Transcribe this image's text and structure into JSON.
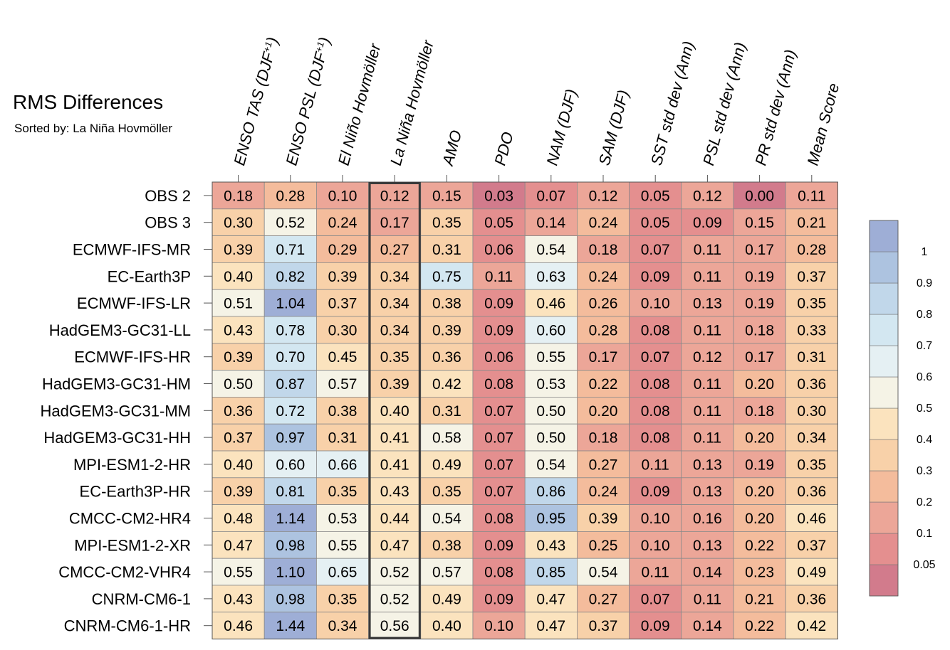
{
  "chart_data": {
    "type": "heatmap",
    "title": "RMS Differences",
    "subtitle": "Sorted by: La Niña Hovmöller",
    "highlight_column": "La Niña Hovmöller",
    "columns": [
      "ENSO TAS (DJF+1)",
      "ENSO PSL (DJF+1)",
      "El Niño Hovmöller",
      "La Niña Hovmöller",
      "AMO",
      "PDO",
      "NAM (DJF)",
      "SAM (DJF)",
      "SST std dev (Ann)",
      "PSL std dev (Ann)",
      "PR std dev (Ann)",
      "Mean Score"
    ],
    "rows": [
      "OBS 2",
      "OBS 3",
      "ECMWF-IFS-MR",
      "EC-Earth3P",
      "ECMWF-IFS-LR",
      "HadGEM3-GC31-LL",
      "ECMWF-IFS-HR",
      "HadGEM3-GC31-HM",
      "HadGEM3-GC31-MM",
      "HadGEM3-GC31-HH",
      "MPI-ESM1-2-HR",
      "EC-Earth3P-HR",
      "CMCC-CM2-HR4",
      "MPI-ESM1-2-XR",
      "CMCC-CM2-VHR4",
      "CNRM-CM6-1",
      "CNRM-CM6-1-HR"
    ],
    "values": [
      [
        "0.18",
        "0.28",
        "0.10",
        "0.12",
        "0.15",
        "0.03",
        "0.07",
        "0.12",
        "0.05",
        "0.12",
        "0.00",
        "0.11"
      ],
      [
        "0.30",
        "0.52",
        "0.24",
        "0.17",
        "0.35",
        "0.05",
        "0.14",
        "0.24",
        "0.05",
        "0.09",
        "0.15",
        "0.21"
      ],
      [
        "0.39",
        "0.71",
        "0.29",
        "0.27",
        "0.31",
        "0.06",
        "0.54",
        "0.18",
        "0.07",
        "0.11",
        "0.17",
        "0.28"
      ],
      [
        "0.40",
        "0.82",
        "0.39",
        "0.34",
        "0.75",
        "0.11",
        "0.63",
        "0.24",
        "0.09",
        "0.11",
        "0.19",
        "0.37"
      ],
      [
        "0.51",
        "1.04",
        "0.37",
        "0.34",
        "0.38",
        "0.09",
        "0.46",
        "0.26",
        "0.10",
        "0.13",
        "0.19",
        "0.35"
      ],
      [
        "0.43",
        "0.78",
        "0.30",
        "0.34",
        "0.39",
        "0.09",
        "0.60",
        "0.28",
        "0.08",
        "0.11",
        "0.18",
        "0.33"
      ],
      [
        "0.39",
        "0.70",
        "0.45",
        "0.35",
        "0.36",
        "0.06",
        "0.55",
        "0.17",
        "0.07",
        "0.12",
        "0.17",
        "0.31"
      ],
      [
        "0.50",
        "0.87",
        "0.57",
        "0.39",
        "0.42",
        "0.08",
        "0.53",
        "0.22",
        "0.08",
        "0.11",
        "0.20",
        "0.36"
      ],
      [
        "0.36",
        "0.72",
        "0.38",
        "0.40",
        "0.31",
        "0.07",
        "0.50",
        "0.20",
        "0.08",
        "0.11",
        "0.18",
        "0.30"
      ],
      [
        "0.37",
        "0.97",
        "0.31",
        "0.41",
        "0.58",
        "0.07",
        "0.50",
        "0.18",
        "0.08",
        "0.11",
        "0.20",
        "0.34"
      ],
      [
        "0.40",
        "0.60",
        "0.66",
        "0.41",
        "0.49",
        "0.07",
        "0.54",
        "0.27",
        "0.11",
        "0.13",
        "0.19",
        "0.35"
      ],
      [
        "0.39",
        "0.81",
        "0.35",
        "0.43",
        "0.35",
        "0.07",
        "0.86",
        "0.24",
        "0.09",
        "0.13",
        "0.20",
        "0.36"
      ],
      [
        "0.48",
        "1.14",
        "0.53",
        "0.44",
        "0.54",
        "0.08",
        "0.95",
        "0.39",
        "0.10",
        "0.16",
        "0.20",
        "0.46"
      ],
      [
        "0.47",
        "0.98",
        "0.55",
        "0.47",
        "0.38",
        "0.09",
        "0.43",
        "0.25",
        "0.10",
        "0.13",
        "0.22",
        "0.37"
      ],
      [
        "0.55",
        "1.10",
        "0.65",
        "0.52",
        "0.57",
        "0.08",
        "0.85",
        "0.54",
        "0.11",
        "0.14",
        "0.23",
        "0.49"
      ],
      [
        "0.43",
        "0.98",
        "0.35",
        "0.52",
        "0.49",
        "0.09",
        "0.47",
        "0.27",
        "0.07",
        "0.11",
        "0.21",
        "0.36"
      ],
      [
        "0.46",
        "1.44",
        "0.34",
        "0.56",
        "0.40",
        "0.10",
        "0.47",
        "0.37",
        "0.09",
        "0.14",
        "0.22",
        "0.42"
      ]
    ],
    "colorbar": {
      "boundaries": [
        0,
        0.05,
        0.1,
        0.2,
        0.3,
        0.4,
        0.5,
        0.6,
        0.7,
        0.8,
        0.9,
        1,
        2
      ],
      "colors": [
        "#d27b8c",
        "#e48f8f",
        "#eca698",
        "#f4bc9c",
        "#f8d1a9",
        "#fbe3be",
        "#f5f3e6",
        "#e5f0f3",
        "#d3e7f1",
        "#c1d7ea",
        "#adc3e0",
        "#9eaed6"
      ],
      "tick_labels": [
        "0.05",
        "0.1",
        "0.2",
        "0.3",
        "0.4",
        "0.5",
        "0.6",
        "0.7",
        "0.8",
        "0.9",
        "1"
      ]
    }
  }
}
